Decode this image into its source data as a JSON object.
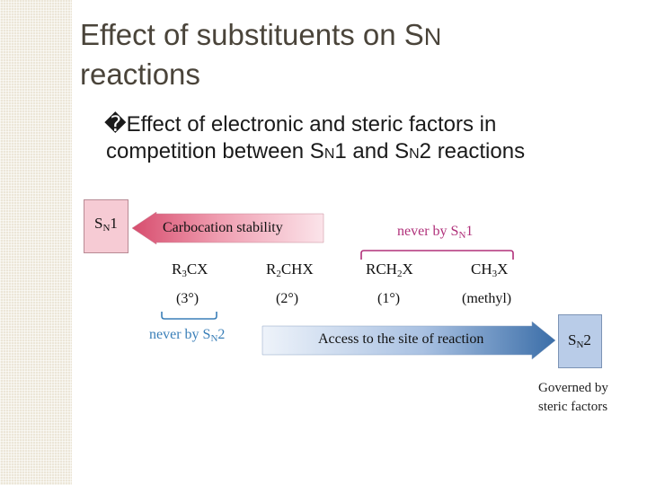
{
  "slide": {
    "title_line1": "Effect of substituents on S",
    "title_line1_sub": "N",
    "title_line2": "reactions",
    "bullet_glyph": "�",
    "bullet_part1": "Effect of electronic and steric factors in",
    "bullet_part2a": "competition between S",
    "bullet_n1": "N",
    "bullet_part2b": "1 and S",
    "bullet_n2": "N",
    "bullet_part2c": "2 reactions"
  },
  "diagram": {
    "sn1_box": {
      "s": "S",
      "n": "N",
      "num": "1"
    },
    "sn2_box": {
      "s": "S",
      "n": "N",
      "num": "2"
    },
    "carbocation_label": "Carbocation stability",
    "access_label": "Access to the site of reaction",
    "never_sn1": {
      "text": "never by S",
      "n": "N",
      "num": "1"
    },
    "never_sn2": {
      "text": "never by S",
      "n": "N",
      "num": "2"
    },
    "compounds": [
      {
        "formula_a": "R",
        "formula_sub": "3",
        "formula_b": "CX",
        "degree": "(3°)"
      },
      {
        "formula_a": "R",
        "formula_sub": "2",
        "formula_b": "CHX",
        "degree": "(2°)"
      },
      {
        "formula_a": "RCH",
        "formula_sub": "2",
        "formula_b": "X",
        "degree": "(1°)"
      },
      {
        "formula_a": "CH",
        "formula_sub": "3",
        "formula_b": "X",
        "degree": "(methyl)"
      }
    ],
    "governed_line1": "Governed by",
    "governed_line2": "steric factors",
    "colors": {
      "pink_box": "#f6cbd4",
      "pink_arrow": "#d74d6e",
      "blue_box": "#b9cce8",
      "blue_arrow": "#3b6ea8",
      "magenta_text": "#b0307a",
      "blue_text": "#3a7fb8"
    }
  }
}
